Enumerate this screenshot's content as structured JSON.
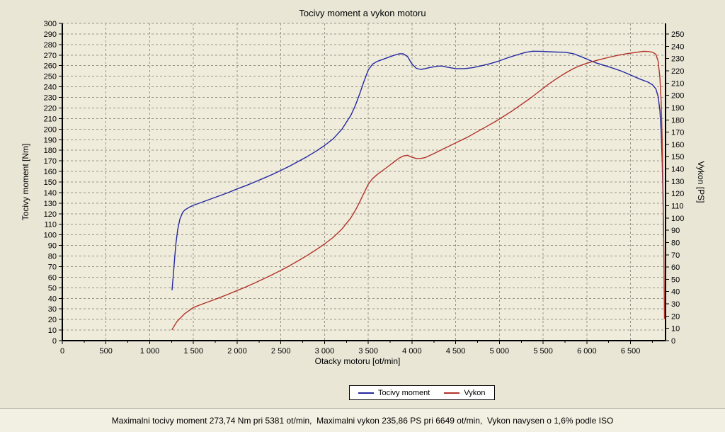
{
  "chart_data": {
    "type": "line",
    "title": "Tocivy moment a vykon motoru",
    "xlabel": "Otacky motoru [ot/min]",
    "ylabel_left": "Tocivy moment [Nm]",
    "ylabel_right": "Vykon [PS]",
    "xlim": [
      0,
      6900
    ],
    "ylim_left": [
      0,
      300
    ],
    "ylim_right": [
      0,
      258.7
    ],
    "grid": true,
    "legend_position": "bottom",
    "colors": {
      "plot_bg": "#efecdc",
      "grid": "#98948a",
      "axis": "#000000"
    },
    "x_ticks": [
      [
        0,
        "0"
      ],
      [
        500,
        "500"
      ],
      [
        1000,
        "1 000"
      ],
      [
        1500,
        "1 500"
      ],
      [
        2000,
        "2 000"
      ],
      [
        2500,
        "2 500"
      ],
      [
        3000,
        "3 000"
      ],
      [
        3500,
        "3 500"
      ],
      [
        4000,
        "4 000"
      ],
      [
        4500,
        "4 500"
      ],
      [
        5000,
        "5 000"
      ],
      [
        5500,
        "5 500"
      ],
      [
        6000,
        "6 000"
      ],
      [
        6500,
        "6 500"
      ]
    ],
    "y_ticks_left": [
      0,
      10,
      20,
      30,
      40,
      50,
      60,
      70,
      80,
      90,
      100,
      110,
      120,
      130,
      140,
      150,
      160,
      170,
      180,
      190,
      200,
      210,
      220,
      230,
      240,
      250,
      260,
      270,
      280,
      290,
      300
    ],
    "y_ticks_right": [
      0,
      10,
      20,
      30,
      40,
      50,
      60,
      70,
      80,
      90,
      100,
      110,
      120,
      130,
      140,
      150,
      160,
      170,
      180,
      190,
      200,
      210,
      220,
      230,
      240,
      250
    ],
    "series": [
      {
        "id": "torque",
        "name": "Tocivy moment",
        "axis": "left",
        "unit": "Nm",
        "color": "#2328a0",
        "points": [
          [
            1255,
            48
          ],
          [
            1270,
            62
          ],
          [
            1285,
            78
          ],
          [
            1300,
            92
          ],
          [
            1320,
            105
          ],
          [
            1345,
            115
          ],
          [
            1375,
            121
          ],
          [
            1400,
            123.5
          ],
          [
            1450,
            126
          ],
          [
            1500,
            128
          ],
          [
            1600,
            131
          ],
          [
            1700,
            134
          ],
          [
            1800,
            137
          ],
          [
            1900,
            140
          ],
          [
            2000,
            143.5
          ],
          [
            2100,
            146.5
          ],
          [
            2200,
            150
          ],
          [
            2300,
            153.5
          ],
          [
            2400,
            157
          ],
          [
            2500,
            161
          ],
          [
            2600,
            165
          ],
          [
            2700,
            169.5
          ],
          [
            2800,
            174
          ],
          [
            2900,
            179
          ],
          [
            3000,
            184.5
          ],
          [
            3100,
            191
          ],
          [
            3200,
            200
          ],
          [
            3300,
            213
          ],
          [
            3350,
            222
          ],
          [
            3400,
            233
          ],
          [
            3450,
            245
          ],
          [
            3500,
            256
          ],
          [
            3550,
            261.5
          ],
          [
            3600,
            264
          ],
          [
            3700,
            267
          ],
          [
            3800,
            270
          ],
          [
            3850,
            271.2
          ],
          [
            3900,
            271.3
          ],
          [
            3950,
            268.5
          ],
          [
            4000,
            261.5
          ],
          [
            4050,
            257.5
          ],
          [
            4100,
            256.5
          ],
          [
            4150,
            257.2
          ],
          [
            4200,
            258.2
          ],
          [
            4300,
            259.6
          ],
          [
            4350,
            259.6
          ],
          [
            4400,
            258.6
          ],
          [
            4500,
            257.2
          ],
          [
            4600,
            257.2
          ],
          [
            4700,
            258.2
          ],
          [
            4800,
            260
          ],
          [
            4900,
            262
          ],
          [
            5000,
            264.6
          ],
          [
            5100,
            267.6
          ],
          [
            5200,
            270.2
          ],
          [
            5300,
            272.6
          ],
          [
            5381,
            273.7
          ],
          [
            5450,
            273.6
          ],
          [
            5550,
            273.2
          ],
          [
            5650,
            272.9
          ],
          [
            5750,
            272.7
          ],
          [
            5850,
            271.3
          ],
          [
            5950,
            268
          ],
          [
            6000,
            266.2
          ],
          [
            6100,
            262.8
          ],
          [
            6200,
            260.2
          ],
          [
            6300,
            257.6
          ],
          [
            6400,
            254.7
          ],
          [
            6500,
            251.2
          ],
          [
            6600,
            247.6
          ],
          [
            6700,
            244.4
          ],
          [
            6750,
            242
          ],
          [
            6790,
            238
          ],
          [
            6815,
            231
          ],
          [
            6835,
            218
          ],
          [
            6850,
            198
          ],
          [
            6862,
            170
          ],
          [
            6871,
            138
          ],
          [
            6877,
            98
          ]
        ]
      },
      {
        "id": "power",
        "name": "Vykon",
        "axis": "right",
        "unit": "PS",
        "color": "#b23228",
        "points": [
          [
            1255,
            9
          ],
          [
            1280,
            12
          ],
          [
            1310,
            15.5
          ],
          [
            1345,
            18
          ],
          [
            1400,
            22
          ],
          [
            1450,
            24.5
          ],
          [
            1500,
            27
          ],
          [
            1600,
            29.8
          ],
          [
            1700,
            32.4
          ],
          [
            1800,
            35.1
          ],
          [
            1900,
            37.9
          ],
          [
            2000,
            40.9
          ],
          [
            2100,
            43.8
          ],
          [
            2200,
            47
          ],
          [
            2300,
            50.3
          ],
          [
            2400,
            53.7
          ],
          [
            2500,
            57.3
          ],
          [
            2600,
            61.1
          ],
          [
            2700,
            65.2
          ],
          [
            2800,
            69.4
          ],
          [
            2900,
            74
          ],
          [
            3000,
            78.8
          ],
          [
            3100,
            84.3
          ],
          [
            3200,
            91.1
          ],
          [
            3300,
            100.1
          ],
          [
            3350,
            106
          ],
          [
            3400,
            112.8
          ],
          [
            3450,
            120.3
          ],
          [
            3500,
            127.6
          ],
          [
            3550,
            132.1
          ],
          [
            3600,
            135.3
          ],
          [
            3700,
            140.6
          ],
          [
            3800,
            146
          ],
          [
            3850,
            148.7
          ],
          [
            3900,
            150.6
          ],
          [
            3950,
            151.1
          ],
          [
            4000,
            149.5
          ],
          [
            4050,
            148.5
          ],
          [
            4100,
            148.6
          ],
          [
            4150,
            149.2
          ],
          [
            4250,
            152.5
          ],
          [
            4350,
            156
          ],
          [
            4450,
            159.5
          ],
          [
            4550,
            163
          ],
          [
            4650,
            166.5
          ],
          [
            4750,
            170.5
          ],
          [
            4850,
            174.5
          ],
          [
            4950,
            178.5
          ],
          [
            5050,
            183
          ],
          [
            5150,
            187.5
          ],
          [
            5250,
            192.5
          ],
          [
            5350,
            197.5
          ],
          [
            5450,
            203
          ],
          [
            5550,
            208.5
          ],
          [
            5650,
            213.5
          ],
          [
            5750,
            218
          ],
          [
            5850,
            222
          ],
          [
            5950,
            225
          ],
          [
            6050,
            227.3
          ],
          [
            6150,
            229.2
          ],
          [
            6250,
            231
          ],
          [
            6350,
            232.6
          ],
          [
            6450,
            233.9
          ],
          [
            6550,
            234.9
          ],
          [
            6649,
            235.9
          ],
          [
            6700,
            235.8
          ],
          [
            6750,
            235.2
          ],
          [
            6790,
            233.5
          ],
          [
            6815,
            228
          ],
          [
            6835,
            215
          ],
          [
            6850,
            195
          ],
          [
            6862,
            163
          ],
          [
            6872,
            120
          ],
          [
            6881,
            70
          ],
          [
            6888,
            18
          ]
        ]
      }
    ],
    "annotations": {
      "max_torque": "273,74 Nm pri 5381 ot/min",
      "max_power": "235,86 PS pri 6649 ot/min",
      "iso_note": "Vykon navysen o 1,6% podle ISO"
    }
  },
  "legend": {
    "items": [
      {
        "label": "Tocivy moment",
        "color": "#2328a0"
      },
      {
        "label": "Vykon",
        "color": "#b23228"
      }
    ]
  },
  "status_bar": {
    "text": "Maximalni tocivy moment 273,74 Nm pri 5381 ot/min,  Maximalni vykon 235,86 PS pri 6649 ot/min,  Vykon navysen o 1,6% podle ISO"
  }
}
